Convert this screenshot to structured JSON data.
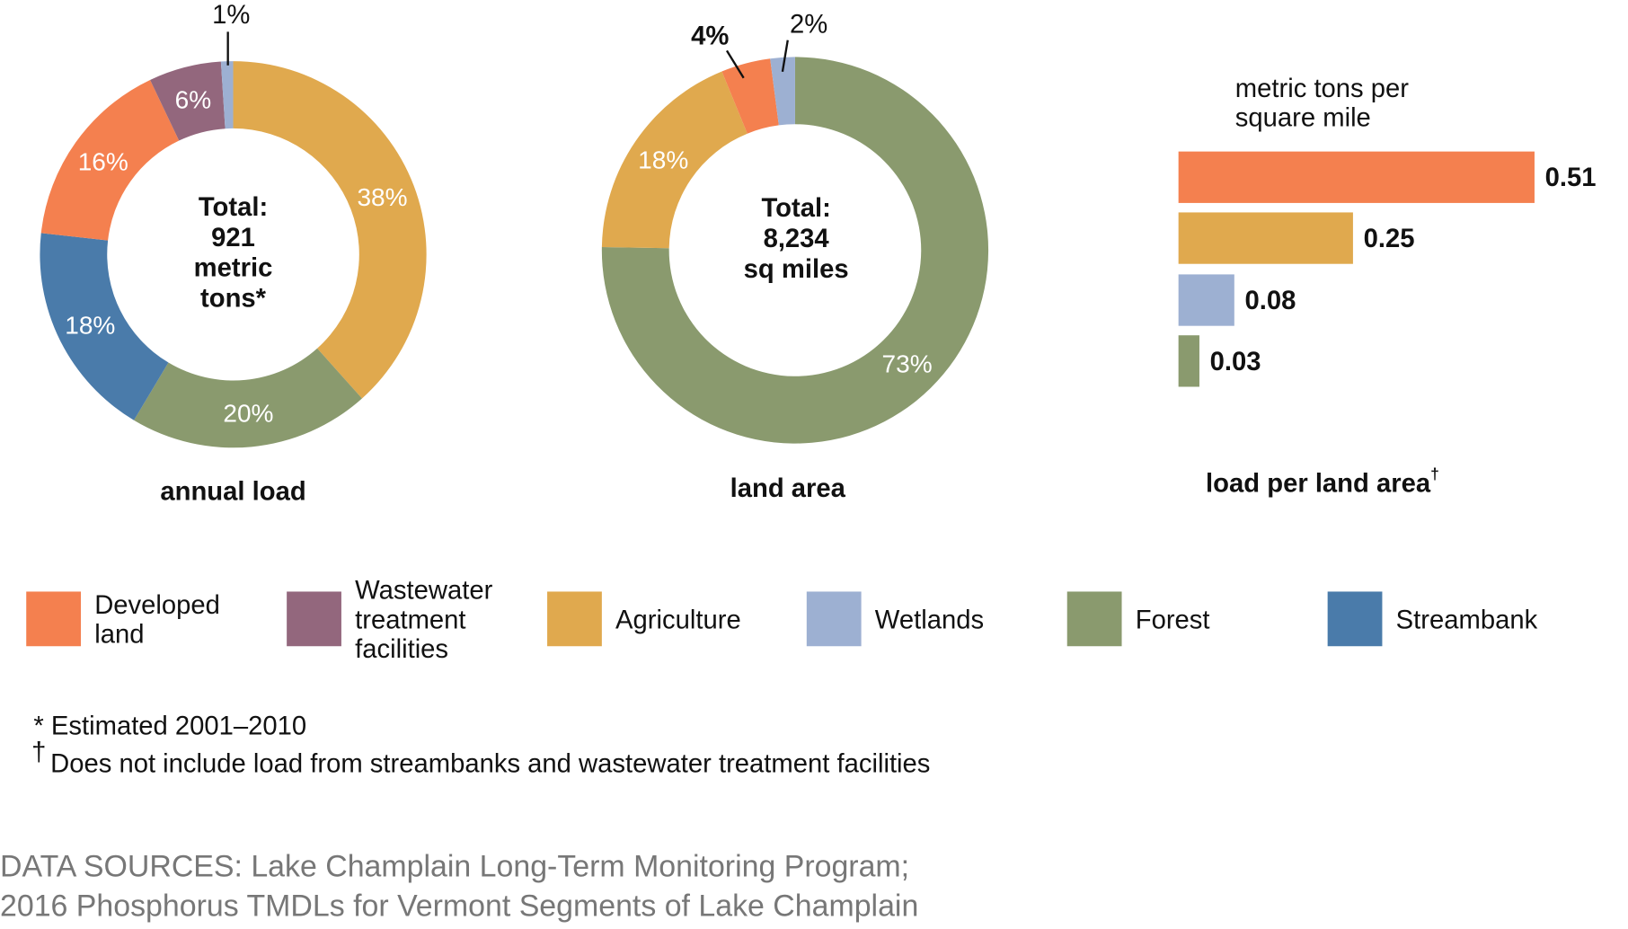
{
  "colors": {
    "developed": "#F4804F",
    "wastewater": "#93677D",
    "agriculture": "#E0A94E",
    "wetlands": "#9DB0D2",
    "forest": "#8A9A6E",
    "streambank": "#4A7BAA"
  },
  "chart_data": [
    {
      "type": "pie",
      "variant": "donut",
      "title": "annual load",
      "center_text": [
        "Total:",
        "921",
        "metric",
        "tons*"
      ],
      "slices": [
        {
          "name": "Agriculture",
          "value": 38,
          "label": "38%",
          "key": "agriculture"
        },
        {
          "name": "Forest",
          "value": 20,
          "label": "20%",
          "key": "forest"
        },
        {
          "name": "Streambank",
          "value": 18,
          "label": "18%",
          "key": "streambank"
        },
        {
          "name": "Developed land",
          "value": 16,
          "label": "16%",
          "key": "developed"
        },
        {
          "name": "Wastewater treatment facilities",
          "value": 6,
          "label": "6%",
          "key": "wastewater"
        },
        {
          "name": "Wetlands",
          "value": 1,
          "label": "1%",
          "key": "wetlands"
        }
      ]
    },
    {
      "type": "pie",
      "variant": "donut",
      "title": "land area",
      "center_text": [
        "Total:",
        "8,234",
        "sq miles"
      ],
      "slices": [
        {
          "name": "Forest",
          "value": 73,
          "label": "73%",
          "key": "forest"
        },
        {
          "name": "Agriculture",
          "value": 18,
          "label": "18%",
          "key": "agriculture"
        },
        {
          "name": "Developed land",
          "value": 4,
          "label": "4%",
          "key": "developed"
        },
        {
          "name": "Wetlands",
          "value": 2,
          "label": "2%",
          "key": "wetlands"
        }
      ]
    },
    {
      "type": "bar",
      "orientation": "horizontal",
      "title": "load per land area",
      "title_mark": "†",
      "unit_label": [
        "metric tons per",
        "square mile"
      ],
      "categories": [
        "Developed land",
        "Agriculture",
        "Wetlands",
        "Forest"
      ],
      "keys": [
        "developed",
        "agriculture",
        "wetlands",
        "forest"
      ],
      "values": [
        0.51,
        0.25,
        0.08,
        0.03
      ],
      "labels": [
        "0.51",
        "0.25",
        "0.08",
        "0.03"
      ],
      "xlim": [
        0,
        0.51
      ]
    }
  ],
  "legend": [
    {
      "key": "developed",
      "lines": [
        "Developed",
        "land"
      ]
    },
    {
      "key": "wastewater",
      "lines": [
        "Wastewater",
        "treatment",
        "facilities"
      ]
    },
    {
      "key": "agriculture",
      "lines": [
        "Agriculture"
      ]
    },
    {
      "key": "wetlands",
      "lines": [
        "Wetlands"
      ]
    },
    {
      "key": "forest",
      "lines": [
        "Forest"
      ]
    },
    {
      "key": "streambank",
      "lines": [
        "Streambank"
      ]
    }
  ],
  "notes": {
    "note1": "* Estimated 2001–2010",
    "note2_mark": "†",
    "note2": "Does not include load from streambanks and wastewater treatment  facilities"
  },
  "sources": {
    "line1": "DATA SOURCES: Lake Champlain Long-Term Monitoring Program;",
    "line2": "2016 Phosphorus TMDLs for Vermont Segments of Lake Champlain"
  }
}
